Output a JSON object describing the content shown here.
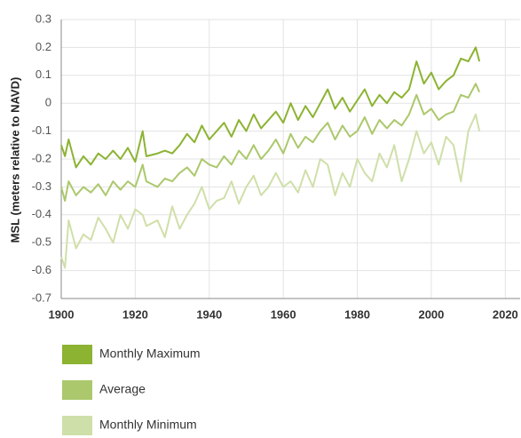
{
  "chart_data": {
    "type": "line",
    "y_label": "MSL (meters relative to NAVD)",
    "x": [
      1900,
      1901,
      1902,
      1904,
      1906,
      1908,
      1910,
      1912,
      1914,
      1916,
      1918,
      1920,
      1922,
      1923,
      1926,
      1928,
      1930,
      1932,
      1934,
      1936,
      1938,
      1940,
      1942,
      1944,
      1946,
      1948,
      1950,
      1952,
      1954,
      1956,
      1958,
      1960,
      1962,
      1964,
      1966,
      1968,
      1970,
      1972,
      1974,
      1976,
      1978,
      1980,
      1982,
      1984,
      1986,
      1988,
      1990,
      1992,
      1994,
      1996,
      1998,
      2000,
      2002,
      2004,
      2006,
      2008,
      2010,
      2012,
      2013
    ],
    "series": [
      {
        "name": "Monthly Maximum",
        "color": "#8cb332",
        "values": [
          -0.15,
          -0.19,
          -0.13,
          -0.23,
          -0.19,
          -0.22,
          -0.18,
          -0.2,
          -0.17,
          -0.2,
          -0.16,
          -0.21,
          -0.1,
          -0.19,
          -0.18,
          -0.17,
          -0.18,
          -0.15,
          -0.11,
          -0.14,
          -0.08,
          -0.13,
          -0.1,
          -0.07,
          -0.12,
          -0.06,
          -0.1,
          -0.04,
          -0.09,
          -0.06,
          -0.03,
          -0.07,
          0.0,
          -0.06,
          -0.01,
          -0.05,
          0.0,
          0.05,
          -0.02,
          0.02,
          -0.03,
          0.01,
          0.05,
          -0.01,
          0.03,
          0.0,
          0.04,
          0.02,
          0.05,
          0.15,
          0.07,
          0.11,
          0.05,
          0.08,
          0.1,
          0.16,
          0.15,
          0.2,
          0.15
        ]
      },
      {
        "name": "Average",
        "color": "#abc86c",
        "values": [
          -0.3,
          -0.35,
          -0.28,
          -0.33,
          -0.3,
          -0.32,
          -0.29,
          -0.33,
          -0.28,
          -0.31,
          -0.28,
          -0.3,
          -0.22,
          -0.28,
          -0.3,
          -0.27,
          -0.28,
          -0.25,
          -0.23,
          -0.26,
          -0.2,
          -0.22,
          -0.23,
          -0.19,
          -0.22,
          -0.17,
          -0.2,
          -0.15,
          -0.2,
          -0.17,
          -0.13,
          -0.18,
          -0.11,
          -0.16,
          -0.12,
          -0.14,
          -0.1,
          -0.07,
          -0.13,
          -0.08,
          -0.12,
          -0.1,
          -0.05,
          -0.11,
          -0.06,
          -0.09,
          -0.06,
          -0.08,
          -0.04,
          0.03,
          -0.04,
          -0.02,
          -0.06,
          -0.04,
          -0.03,
          0.03,
          0.02,
          0.07,
          0.04
        ]
      },
      {
        "name": "Monthly Minimum",
        "color": "#cfdfa9",
        "values": [
          -0.55,
          -0.59,
          -0.42,
          -0.52,
          -0.47,
          -0.49,
          -0.41,
          -0.45,
          -0.5,
          -0.4,
          -0.45,
          -0.38,
          -0.4,
          -0.44,
          -0.42,
          -0.48,
          -0.37,
          -0.45,
          -0.4,
          -0.36,
          -0.3,
          -0.38,
          -0.35,
          -0.34,
          -0.28,
          -0.36,
          -0.3,
          -0.26,
          -0.33,
          -0.3,
          -0.25,
          -0.3,
          -0.28,
          -0.32,
          -0.24,
          -0.3,
          -0.2,
          -0.22,
          -0.33,
          -0.25,
          -0.3,
          -0.2,
          -0.25,
          -0.28,
          -0.18,
          -0.23,
          -0.15,
          -0.28,
          -0.2,
          -0.1,
          -0.18,
          -0.14,
          -0.22,
          -0.12,
          -0.15,
          -0.28,
          -0.1,
          -0.04,
          -0.1
        ]
      }
    ],
    "xlim": [
      1900,
      2024
    ],
    "xticks": [
      1900,
      1920,
      1940,
      1960,
      1980,
      2000,
      2020
    ],
    "ylim": [
      -0.7,
      0.3
    ],
    "yticks": [
      0.3,
      0.2,
      0.1,
      0,
      -0.1,
      -0.2,
      -0.3,
      -0.4,
      -0.5,
      -0.6,
      -0.7
    ],
    "grid": true,
    "legend": "bottom"
  }
}
